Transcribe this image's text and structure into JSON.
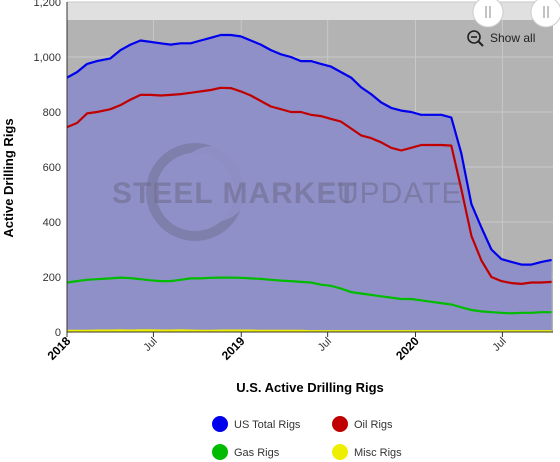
{
  "chart_data": {
    "type": "line",
    "title": "",
    "xlabel": "U.S. Active Drilling Rigs",
    "ylabel": "Active Drilling Rigs",
    "ylim": [
      0,
      1200
    ],
    "xlim": [
      "2018-01-01",
      "2020-10-15"
    ],
    "yticks": [
      "0",
      "200",
      "400",
      "600",
      "800",
      "1,000",
      "1,200"
    ],
    "xticks": [
      {
        "date": "2018-01-01",
        "label": "2018",
        "major": true
      },
      {
        "date": "2018-07-01",
        "label": "Jul",
        "major": false
      },
      {
        "date": "2019-01-01",
        "label": "2019",
        "major": true
      },
      {
        "date": "2019-07-01",
        "label": "Jul",
        "major": false
      },
      {
        "date": "2020-01-01",
        "label": "2020",
        "major": true
      },
      {
        "date": "2020-07-01",
        "label": "Jul",
        "major": false
      }
    ],
    "grid": true,
    "legend_position": "bottom-center",
    "x": [
      "2018-01-01",
      "2018-01-22",
      "2018-02-12",
      "2018-03-05",
      "2018-04-02",
      "2018-04-23",
      "2018-05-14",
      "2018-06-04",
      "2018-06-25",
      "2018-07-16",
      "2018-08-06",
      "2018-08-27",
      "2018-09-17",
      "2018-10-08",
      "2018-10-29",
      "2018-11-19",
      "2018-12-10",
      "2018-12-31",
      "2019-01-21",
      "2019-02-11",
      "2019-03-04",
      "2019-03-25",
      "2019-04-15",
      "2019-05-06",
      "2019-05-27",
      "2019-06-17",
      "2019-07-08",
      "2019-07-29",
      "2019-08-19",
      "2019-09-09",
      "2019-09-30",
      "2019-10-21",
      "2019-11-11",
      "2019-12-02",
      "2019-12-23",
      "2020-01-13",
      "2020-02-03",
      "2020-02-24",
      "2020-03-16",
      "2020-04-06",
      "2020-04-27",
      "2020-05-18",
      "2020-06-08",
      "2020-06-29",
      "2020-07-20",
      "2020-08-10",
      "2020-08-31",
      "2020-09-21",
      "2020-10-12"
    ],
    "series": [
      {
        "name": "US Total Rigs",
        "color": "#0000ee",
        "values": [
          925,
          945,
          975,
          985,
          995,
          1025,
          1045,
          1060,
          1055,
          1050,
          1045,
          1050,
          1050,
          1060,
          1070,
          1080,
          1080,
          1075,
          1060,
          1045,
          1025,
          1010,
          1000,
          985,
          985,
          975,
          965,
          945,
          925,
          890,
          865,
          835,
          815,
          805,
          800,
          790,
          790,
          790,
          780,
          650,
          465,
          380,
          300,
          265,
          255,
          245,
          245,
          255,
          262
        ]
      },
      {
        "name": "Oil Rigs",
        "color": "#c00000",
        "values": [
          745,
          760,
          795,
          800,
          810,
          825,
          845,
          862,
          862,
          860,
          862,
          865,
          870,
          875,
          880,
          888,
          887,
          875,
          860,
          840,
          820,
          810,
          800,
          800,
          790,
          785,
          775,
          765,
          740,
          715,
          705,
          690,
          670,
          660,
          670,
          680,
          680,
          680,
          678,
          520,
          350,
          260,
          200,
          185,
          178,
          175,
          180,
          180,
          182
        ]
      },
      {
        "name": "Gas Rigs",
        "color": "#00bb00",
        "values": [
          180,
          185,
          190,
          192,
          195,
          198,
          196,
          192,
          188,
          185,
          185,
          190,
          195,
          195,
          197,
          198,
          198,
          197,
          195,
          193,
          190,
          187,
          185,
          182,
          180,
          172,
          168,
          158,
          145,
          140,
          135,
          130,
          125,
          120,
          120,
          115,
          110,
          105,
          100,
          90,
          80,
          75,
          72,
          70,
          68,
          70,
          70,
          72,
          72
        ]
      },
      {
        "name": "Misc Rigs",
        "color": "#eeee00",
        "values": [
          4,
          4,
          4,
          5,
          5,
          6,
          5,
          6,
          6,
          5,
          5,
          6,
          5,
          4,
          4,
          5,
          5,
          5,
          5,
          4,
          4,
          4,
          4,
          4,
          3,
          3,
          3,
          3,
          3,
          3,
          3,
          3,
          3,
          3,
          3,
          3,
          3,
          3,
          3,
          3,
          3,
          3,
          3,
          3,
          3,
          3,
          3,
          3,
          3
        ]
      }
    ]
  },
  "legend": {
    "items": [
      {
        "label": "US Total Rigs",
        "color": "#0000ee"
      },
      {
        "label": "Oil Rigs",
        "color": "#c00000"
      },
      {
        "label": "Gas Rigs",
        "color": "#00bb00"
      },
      {
        "label": "Misc Rigs",
        "color": "#eeee00"
      }
    ]
  },
  "toolbar": {
    "show_all_label": "Show all",
    "zoom_icon": "zoom-out-icon"
  },
  "colors": {
    "plot_area": "#b3b3b3",
    "fill": "#9090c8",
    "navigator": "#e0e0e0"
  }
}
